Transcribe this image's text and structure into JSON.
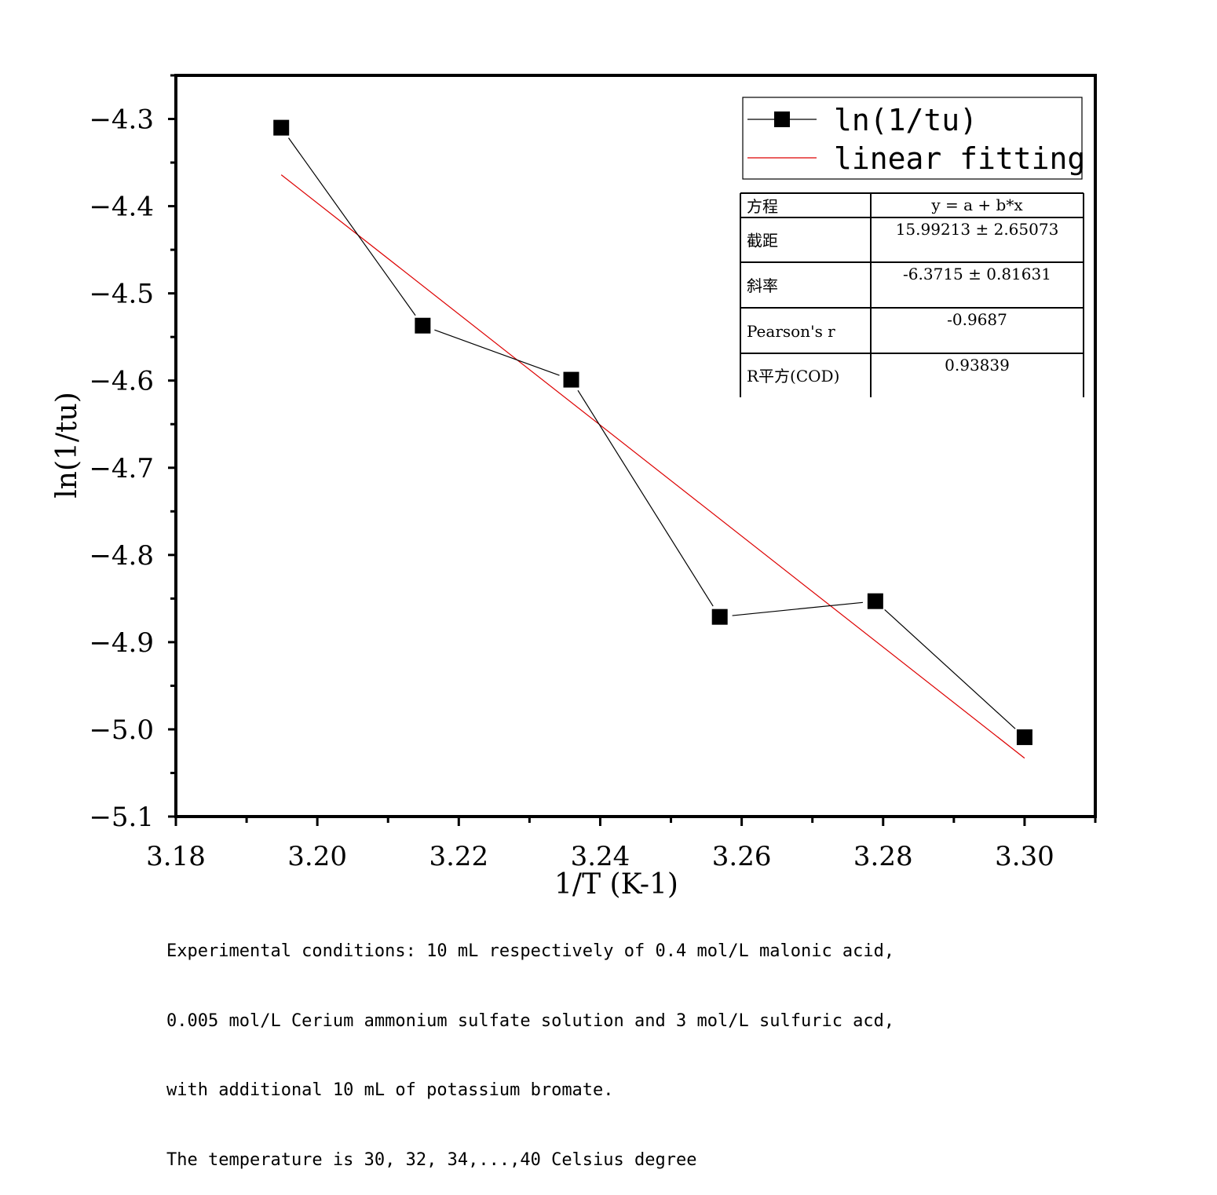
{
  "chart_data": {
    "type": "line",
    "xlabel": "1/T (K-1)",
    "ylabel": "ln(1/tu)",
    "xlim": [
      3.18,
      3.31
    ],
    "ylim": [
      -5.1,
      -4.25
    ],
    "xticks": [
      3.18,
      3.2,
      3.22,
      3.24,
      3.26,
      3.28,
      3.3
    ],
    "xtick_labels": [
      "3.18",
      "3.20",
      "3.22",
      "3.24",
      "3.26",
      "3.28",
      "3.30"
    ],
    "yticks": [
      -4.3,
      -4.4,
      -4.5,
      -4.6,
      -4.7,
      -4.8,
      -4.9,
      -5.0,
      -5.1
    ],
    "ytick_labels": [
      "−4.3",
      "−4.4",
      "−4.5",
      "−4.6",
      "−4.7",
      "−4.8",
      "−4.9",
      "−5.0",
      "−5.1"
    ],
    "grid": false,
    "legend_position": "top-right",
    "series": [
      {
        "name": "ln(1/tu)",
        "style": "line-with-square-markers",
        "color": "#000000",
        "x": [
          3.1949,
          3.2149,
          3.2359,
          3.2569,
          3.2789,
          3.3
        ],
        "y": [
          -4.31,
          -4.537,
          -4.599,
          -4.871,
          -4.853,
          -5.009
        ]
      },
      {
        "name": "linear fitting",
        "style": "line",
        "color": "#dd0000",
        "x": [
          3.1949,
          3.3
        ],
        "y": [
          -4.364,
          -5.033
        ]
      }
    ],
    "stats_table": {
      "rows": [
        {
          "label": "方程",
          "value": "y = a + b*x"
        },
        {
          "label": "截距",
          "value": "15.99213 ± 2.65073"
        },
        {
          "label": "斜率",
          "value": "-6.3715 ± 0.81631"
        },
        {
          "label": "Pearson's r",
          "value": "-0.9687"
        },
        {
          "label": "R平方(COD)",
          "value": "0.93839"
        }
      ]
    }
  },
  "caption": [
    "Experimental conditions: 10 mL respectively of 0.4 mol/L malonic acid,",
    "0.005 mol/L Cerium ammonium sulfate solution and 3 mol/L sulfuric acd,",
    "with additional 10 mL of potassium bromate.",
    "The temperature is 30, 32, 34,...,40 Celsius degree"
  ]
}
